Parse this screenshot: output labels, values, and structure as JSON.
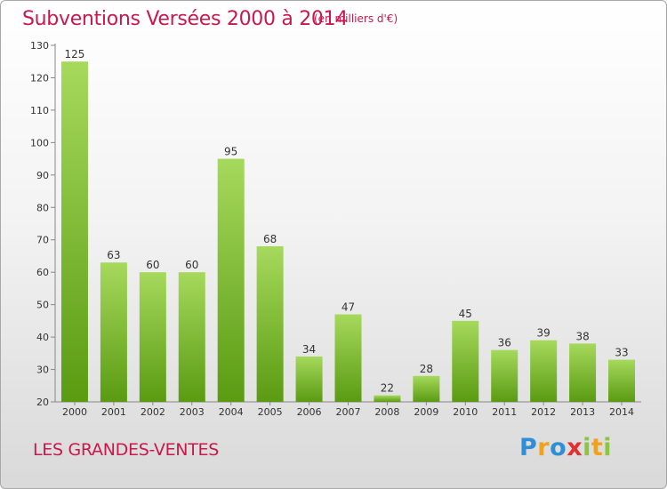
{
  "header": {
    "title": "Subventions Versées 2000 à 2014",
    "subtitle": "(en milliers d'€)"
  },
  "footer": {
    "commune": "LES GRANDES-VENTES",
    "logo": [
      "P",
      "r",
      "o",
      "x",
      "i",
      "t",
      "i"
    ]
  },
  "colors": {
    "title": "#c8194f",
    "bar_top": "#a6d95c",
    "bar_bottom": "#5a9b12"
  },
  "chart_data": {
    "type": "bar",
    "title": "Subventions Versées 2000 à 2014",
    "subtitle": "(en milliers d'€)",
    "categories": [
      "2000",
      "2001",
      "2002",
      "2003",
      "2004",
      "2005",
      "2006",
      "2007",
      "2008",
      "2009",
      "2010",
      "2011",
      "2012",
      "2013",
      "2014"
    ],
    "values": [
      125,
      63,
      60,
      60,
      95,
      68,
      34,
      47,
      22,
      28,
      45,
      36,
      39,
      38,
      33
    ],
    "ylim": [
      20,
      130
    ],
    "yticks": [
      20,
      30,
      40,
      50,
      60,
      70,
      80,
      90,
      100,
      110,
      120,
      130
    ],
    "grid": false,
    "legend": "none",
    "xlabel": "",
    "ylabel": ""
  }
}
